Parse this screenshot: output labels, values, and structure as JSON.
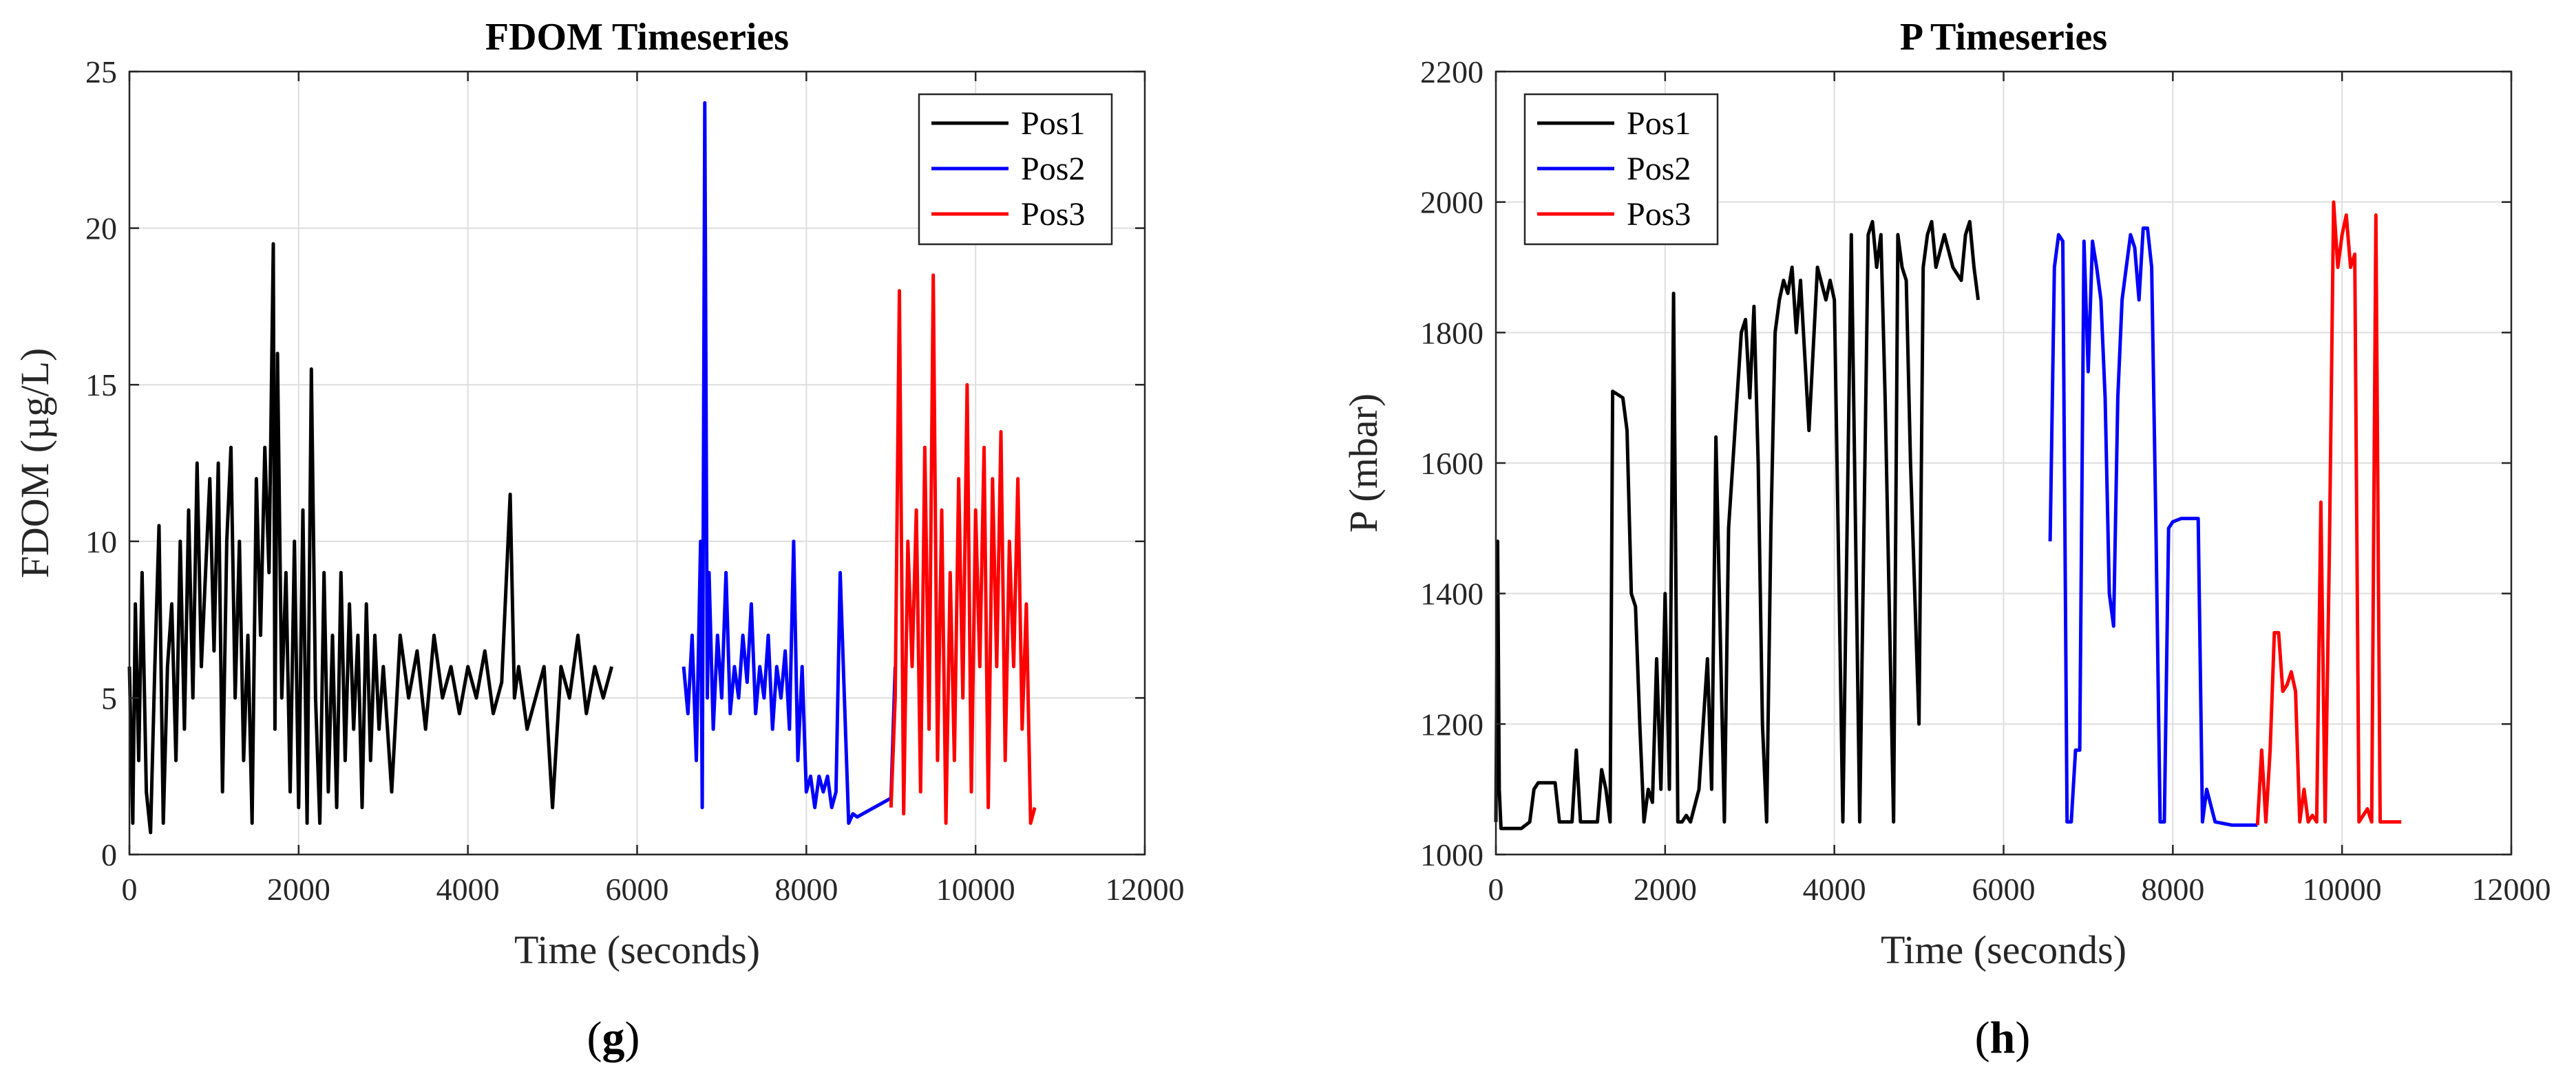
{
  "chart_data": [
    {
      "type": "line",
      "title": "FDOM Timeseries",
      "xlabel": "Time (seconds)",
      "ylabel": "FDOM (µg/L)",
      "panel_label_open": "(",
      "panel_label_letter": "g",
      "panel_label_close": ")",
      "xlim": [
        0,
        12000
      ],
      "ylim": [
        0,
        25
      ],
      "xticks": [
        0,
        2000,
        4000,
        6000,
        8000,
        10000,
        12000
      ],
      "yticks": [
        0,
        5,
        10,
        15,
        20,
        25
      ],
      "grid": true,
      "legend_position": "top-right",
      "series": [
        {
          "name": "Pos1",
          "color": "#000000",
          "x": [
            0,
            40,
            70,
            110,
            150,
            200,
            250,
            300,
            350,
            400,
            450,
            500,
            550,
            600,
            650,
            700,
            750,
            800,
            850,
            900,
            950,
            1000,
            1050,
            1100,
            1150,
            1200,
            1250,
            1300,
            1350,
            1400,
            1450,
            1500,
            1550,
            1600,
            1650,
            1700,
            1720,
            1750,
            1800,
            1850,
            1900,
            1950,
            2000,
            2050,
            2100,
            2150,
            2200,
            2250,
            2300,
            2350,
            2400,
            2450,
            2500,
            2550,
            2600,
            2650,
            2700,
            2750,
            2800,
            2850,
            2900,
            2950,
            3000,
            3100,
            3200,
            3300,
            3400,
            3500,
            3600,
            3700,
            3800,
            3900,
            4000,
            4100,
            4200,
            4300,
            4400,
            4500,
            4550,
            4600,
            4700,
            4800,
            4900,
            5000,
            5100,
            5200,
            5300,
            5400,
            5500,
            5600,
            5700
          ],
          "y": [
            6,
            1,
            8,
            3,
            9,
            2,
            0.7,
            6,
            10.5,
            1,
            6,
            8,
            3,
            10,
            4,
            11,
            5,
            12.5,
            6,
            9,
            12,
            6.5,
            12.5,
            2,
            10,
            13,
            5,
            10,
            3,
            7,
            1,
            12,
            7,
            13,
            9,
            19.5,
            4,
            16,
            5,
            9,
            2,
            10,
            1.5,
            11,
            1,
            15.5,
            5,
            1,
            9,
            2,
            7,
            1.5,
            9,
            3,
            8,
            4,
            7,
            1.5,
            8,
            3,
            7,
            4,
            6,
            2,
            7,
            5,
            6.5,
            4,
            7,
            5,
            6,
            4.5,
            6,
            5,
            6.5,
            4.5,
            5.5,
            11.5,
            5,
            6,
            4,
            5,
            6,
            1.5,
            6,
            5,
            7,
            4.5,
            6,
            5,
            6
          ]
        },
        {
          "name": "Pos2",
          "color": "#0000ff",
          "x": [
            6550,
            6600,
            6650,
            6700,
            6750,
            6770,
            6800,
            6830,
            6850,
            6900,
            6950,
            7000,
            7050,
            7100,
            7150,
            7200,
            7250,
            7300,
            7350,
            7400,
            7450,
            7500,
            7550,
            7600,
            7650,
            7700,
            7750,
            7800,
            7850,
            7900,
            7950,
            8000,
            8050,
            8100,
            8150,
            8200,
            8250,
            8300,
            8350,
            8400,
            8450,
            8500,
            8550,
            8600,
            9000,
            9050
          ],
          "y": [
            6,
            4.5,
            7,
            3,
            10,
            1.5,
            24,
            5,
            9,
            4,
            7,
            5,
            9,
            4.5,
            6,
            5,
            7,
            5.5,
            8,
            4.5,
            6,
            5,
            7,
            4,
            6,
            5,
            6.5,
            4,
            10,
            3,
            6,
            2,
            2.5,
            1.5,
            2.5,
            2,
            2.5,
            1.5,
            2,
            9,
            5,
            1,
            1.3,
            1.2,
            1.8,
            6
          ]
        },
        {
          "name": "Pos3",
          "color": "#ff0000",
          "x": [
            9000,
            9050,
            9100,
            9150,
            9200,
            9250,
            9300,
            9350,
            9400,
            9450,
            9500,
            9550,
            9600,
            9650,
            9700,
            9750,
            9800,
            9850,
            9900,
            9950,
            10000,
            10050,
            10100,
            10150,
            10200,
            10250,
            10300,
            10350,
            10400,
            10450,
            10500,
            10550,
            10600,
            10650,
            10700
          ],
          "y": [
            1.5,
            5,
            18,
            1.3,
            10,
            6,
            11,
            2,
            13,
            4,
            18.5,
            3,
            11,
            1,
            9,
            3,
            12,
            5,
            15,
            2,
            11,
            6,
            13,
            1.5,
            12,
            6,
            13.5,
            3,
            10,
            6,
            12,
            4,
            8,
            1,
            1.5
          ]
        }
      ]
    },
    {
      "type": "line",
      "title": "P Timeseries",
      "xlabel": "Time (seconds)",
      "ylabel": "P (mbar)",
      "panel_label_open": "(",
      "panel_label_letter": "h",
      "panel_label_close": ")",
      "xlim": [
        0,
        12000
      ],
      "ylim": [
        1000,
        2200
      ],
      "xticks": [
        0,
        2000,
        4000,
        6000,
        8000,
        10000,
        12000
      ],
      "yticks": [
        1000,
        1200,
        1400,
        1600,
        1800,
        2000,
        2200
      ],
      "grid": true,
      "legend_position": "top-left",
      "series": [
        {
          "name": "Pos1",
          "color": "#000000",
          "x": [
            0,
            20,
            40,
            60,
            100,
            300,
            400,
            450,
            500,
            700,
            750,
            800,
            900,
            950,
            1000,
            1200,
            1250,
            1300,
            1350,
            1380,
            1500,
            1550,
            1600,
            1650,
            1700,
            1750,
            1800,
            1850,
            1900,
            1950,
            2000,
            2050,
            2100,
            2150,
            2200,
            2250,
            2300,
            2400,
            2500,
            2550,
            2600,
            2700,
            2750,
            2800,
            2850,
            2900,
            2950,
            3000,
            3050,
            3100,
            3150,
            3200,
            3250,
            3300,
            3350,
            3400,
            3450,
            3500,
            3550,
            3600,
            3700,
            3800,
            3900,
            3950,
            4000,
            4100,
            4200,
            4300,
            4400,
            4450,
            4500,
            4550,
            4600,
            4700,
            4750,
            4800,
            4850,
            4900,
            5000,
            5050,
            5100,
            5150,
            5200,
            5300,
            5400,
            5500,
            5550,
            5600,
            5650,
            5700
          ],
          "y": [
            1050,
            1480,
            1100,
            1040,
            1040,
            1040,
            1050,
            1100,
            1110,
            1110,
            1050,
            1050,
            1050,
            1160,
            1050,
            1050,
            1130,
            1100,
            1050,
            1710,
            1700,
            1650,
            1400,
            1380,
            1200,
            1050,
            1100,
            1080,
            1300,
            1100,
            1400,
            1100,
            1860,
            1050,
            1050,
            1060,
            1050,
            1100,
            1300,
            1100,
            1640,
            1050,
            1500,
            1600,
            1700,
            1800,
            1820,
            1700,
            1840,
            1600,
            1200,
            1050,
            1500,
            1800,
            1850,
            1880,
            1860,
            1900,
            1800,
            1880,
            1650,
            1900,
            1850,
            1880,
            1850,
            1050,
            1950,
            1050,
            1950,
            1970,
            1900,
            1950,
            1700,
            1050,
            1950,
            1900,
            1880,
            1600,
            1200,
            1900,
            1950,
            1970,
            1900,
            1950,
            1900,
            1880,
            1950,
            1970,
            1900,
            1850
          ]
        },
        {
          "name": "Pos2",
          "color": "#0000ff",
          "x": [
            6550,
            6600,
            6650,
            6700,
            6750,
            6800,
            6850,
            6900,
            6950,
            7000,
            7050,
            7100,
            7150,
            7200,
            7250,
            7300,
            7350,
            7400,
            7450,
            7500,
            7550,
            7600,
            7650,
            7700,
            7750,
            7800,
            7850,
            7900,
            7950,
            8000,
            8100,
            8200,
            8300,
            8350,
            8400,
            8500,
            8700,
            8900,
            9000
          ],
          "y": [
            1480,
            1900,
            1950,
            1940,
            1050,
            1050,
            1160,
            1160,
            1940,
            1740,
            1940,
            1900,
            1850,
            1700,
            1400,
            1350,
            1700,
            1850,
            1900,
            1950,
            1930,
            1850,
            1960,
            1960,
            1900,
            1500,
            1050,
            1050,
            1500,
            1510,
            1515,
            1515,
            1515,
            1050,
            1100,
            1050,
            1045,
            1045,
            1045
          ]
        },
        {
          "name": "Pos3",
          "color": "#ff0000",
          "x": [
            9000,
            9050,
            9100,
            9150,
            9200,
            9250,
            9300,
            9350,
            9400,
            9450,
            9500,
            9550,
            9600,
            9650,
            9700,
            9750,
            9800,
            9850,
            9900,
            9950,
            10000,
            10050,
            10100,
            10150,
            10200,
            10250,
            10300,
            10350,
            10400,
            10450,
            10500,
            10550,
            10600,
            10650,
            10700
          ],
          "y": [
            1045,
            1160,
            1050,
            1160,
            1340,
            1340,
            1250,
            1260,
            1280,
            1250,
            1050,
            1100,
            1050,
            1060,
            1050,
            1540,
            1050,
            1460,
            2000,
            1900,
            1950,
            1980,
            1900,
            1920,
            1050,
            1060,
            1070,
            1050,
            1980,
            1050,
            1050,
            1050,
            1050,
            1050,
            1050
          ]
        }
      ]
    }
  ]
}
